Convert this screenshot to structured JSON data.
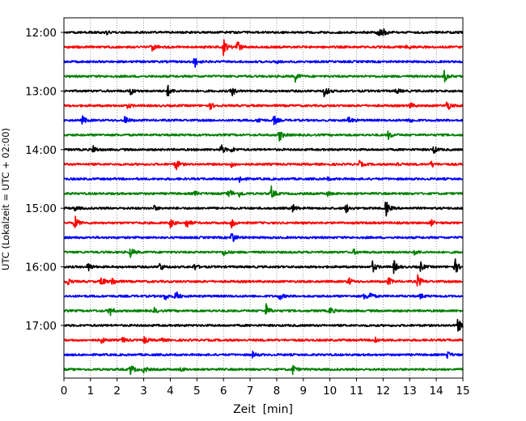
{
  "chart_data": {
    "type": "line",
    "title": "",
    "xlabel": "Zeit  [min]",
    "ylabel": "UTC (Lokalzeit = UTC + 02:00)",
    "xlim": [
      0,
      15
    ],
    "xticks": [
      0,
      1,
      2,
      3,
      4,
      5,
      6,
      7,
      8,
      9,
      10,
      11,
      12,
      13,
      14,
      15
    ],
    "ytick_labels": [
      "12:00",
      "13:00",
      "14:00",
      "15:00",
      "16:00",
      "17:00"
    ],
    "grid": "vertical dotted",
    "legend": "none",
    "colors": [
      "#000000",
      "#ff0000",
      "#0000ff",
      "#008000"
    ],
    "series": [
      {
        "start": "12:00",
        "events": [
          {
            "t": 1.6,
            "a": 0.3
          },
          {
            "t": 11.8,
            "a": 0.8
          },
          {
            "t": 12.0,
            "a": 0.35
          }
        ]
      },
      {
        "start": "12:15",
        "events": [
          {
            "t": 3.3,
            "a": 0.6
          },
          {
            "t": 6.0,
            "a": 1.0
          },
          {
            "t": 6.5,
            "a": 1.0
          },
          {
            "t": 12.9,
            "a": 0.3
          }
        ]
      },
      {
        "start": "12:30",
        "events": [
          {
            "t": 4.9,
            "a": 0.8
          },
          {
            "t": 8.0,
            "a": 0.2
          }
        ]
      },
      {
        "start": "12:45",
        "events": [
          {
            "t": 8.7,
            "a": 0.6
          },
          {
            "t": 14.3,
            "a": 0.7
          }
        ]
      },
      {
        "start": "13:00",
        "events": [
          {
            "t": 2.5,
            "a": 0.5
          },
          {
            "t": 3.9,
            "a": 0.7
          },
          {
            "t": 6.3,
            "a": 0.7
          },
          {
            "t": 9.8,
            "a": 0.8
          },
          {
            "t": 12.5,
            "a": 0.35
          }
        ]
      },
      {
        "start": "13:15",
        "events": [
          {
            "t": 2.4,
            "a": 0.3
          },
          {
            "t": 5.5,
            "a": 0.4
          },
          {
            "t": 13.0,
            "a": 0.4
          },
          {
            "t": 14.4,
            "a": 0.7
          }
        ]
      },
      {
        "start": "13:30",
        "events": [
          {
            "t": 0.7,
            "a": 0.5
          },
          {
            "t": 2.3,
            "a": 0.5
          },
          {
            "t": 7.3,
            "a": 0.35
          },
          {
            "t": 7.9,
            "a": 0.6
          },
          {
            "t": 10.7,
            "a": 0.5
          },
          {
            "t": 13.0,
            "a": 0.35
          }
        ]
      },
      {
        "start": "13:45",
        "events": [
          {
            "t": 8.1,
            "a": 0.8
          },
          {
            "t": 12.2,
            "a": 0.5
          }
        ]
      },
      {
        "start": "14:00",
        "events": [
          {
            "t": 1.1,
            "a": 0.5
          },
          {
            "t": 5.9,
            "a": 0.7
          },
          {
            "t": 6.3,
            "a": 0.3
          },
          {
            "t": 13.9,
            "a": 0.5
          }
        ]
      },
      {
        "start": "14:15",
        "events": [
          {
            "t": 4.2,
            "a": 0.8
          },
          {
            "t": 6.3,
            "a": 0.3
          },
          {
            "t": 11.1,
            "a": 0.4
          },
          {
            "t": 12.5,
            "a": 0.3
          },
          {
            "t": 13.8,
            "a": 0.4
          }
        ]
      },
      {
        "start": "14:30",
        "events": [
          {
            "t": 6.6,
            "a": 0.5
          },
          {
            "t": 9.9,
            "a": 0.2
          }
        ]
      },
      {
        "start": "14:45",
        "events": [
          {
            "t": 4.9,
            "a": 0.3
          },
          {
            "t": 6.2,
            "a": 0.7
          },
          {
            "t": 6.6,
            "a": 0.4
          },
          {
            "t": 7.8,
            "a": 0.8
          },
          {
            "t": 9.9,
            "a": 0.3
          }
        ]
      },
      {
        "start": "15:00",
        "events": [
          {
            "t": 0.4,
            "a": 0.3
          },
          {
            "t": 3.4,
            "a": 0.3
          },
          {
            "t": 8.6,
            "a": 0.5
          },
          {
            "t": 10.6,
            "a": 0.6
          },
          {
            "t": 12.1,
            "a": 1.0
          }
        ]
      },
      {
        "start": "15:15",
        "events": [
          {
            "t": 0.4,
            "a": 1.0
          },
          {
            "t": 4.0,
            "a": 0.6
          },
          {
            "t": 4.6,
            "a": 0.7
          },
          {
            "t": 6.3,
            "a": 0.6
          },
          {
            "t": 13.8,
            "a": 0.4
          }
        ]
      },
      {
        "start": "15:30",
        "events": [
          {
            "t": 6.3,
            "a": 0.9
          }
        ]
      },
      {
        "start": "15:45",
        "events": [
          {
            "t": 2.5,
            "a": 0.6
          },
          {
            "t": 6.0,
            "a": 0.5
          },
          {
            "t": 10.9,
            "a": 0.3
          },
          {
            "t": 13.2,
            "a": 0.35
          }
        ]
      },
      {
        "start": "16:00",
        "events": [
          {
            "t": 0.9,
            "a": 0.6
          },
          {
            "t": 3.6,
            "a": 0.6
          },
          {
            "t": 4.9,
            "a": 0.4
          },
          {
            "t": 11.6,
            "a": 0.7
          },
          {
            "t": 12.4,
            "a": 0.8
          },
          {
            "t": 13.4,
            "a": 0.6
          },
          {
            "t": 14.7,
            "a": 1.0
          }
        ]
      },
      {
        "start": "16:15",
        "events": [
          {
            "t": 0.1,
            "a": 0.5
          },
          {
            "t": 1.4,
            "a": 0.6
          },
          {
            "t": 1.8,
            "a": 0.6
          },
          {
            "t": 10.7,
            "a": 0.5
          },
          {
            "t": 12.2,
            "a": 0.5
          },
          {
            "t": 13.3,
            "a": 0.8
          }
        ]
      },
      {
        "start": "16:30",
        "events": [
          {
            "t": 3.8,
            "a": 0.5
          },
          {
            "t": 4.2,
            "a": 0.7
          },
          {
            "t": 8.1,
            "a": 0.5
          },
          {
            "t": 11.3,
            "a": 0.5
          },
          {
            "t": 11.5,
            "a": 0.5
          },
          {
            "t": 13.4,
            "a": 0.3
          }
        ]
      },
      {
        "start": "16:45",
        "events": [
          {
            "t": 1.7,
            "a": 0.8
          },
          {
            "t": 3.4,
            "a": 0.3
          },
          {
            "t": 7.6,
            "a": 0.8
          },
          {
            "t": 10.0,
            "a": 0.5
          }
        ]
      },
      {
        "start": "17:00",
        "events": [
          {
            "t": 14.8,
            "a": 1.0
          }
        ]
      },
      {
        "start": "17:15",
        "events": [
          {
            "t": 1.4,
            "a": 0.4
          },
          {
            "t": 2.2,
            "a": 0.35
          },
          {
            "t": 3.0,
            "a": 0.5
          },
          {
            "t": 3.6,
            "a": 0.35
          },
          {
            "t": 11.7,
            "a": 0.5
          }
        ]
      },
      {
        "start": "17:30",
        "events": [
          {
            "t": 7.1,
            "a": 0.35
          },
          {
            "t": 14.4,
            "a": 0.5
          }
        ]
      },
      {
        "start": "17:45",
        "events": [
          {
            "t": 2.5,
            "a": 0.7
          },
          {
            "t": 3.0,
            "a": 0.5
          },
          {
            "t": 4.4,
            "a": 0.2
          },
          {
            "t": 8.6,
            "a": 0.6
          }
        ]
      }
    ]
  }
}
